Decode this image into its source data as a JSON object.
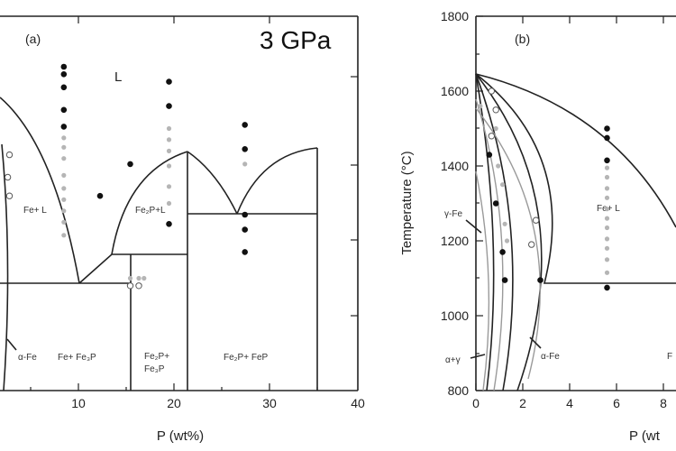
{
  "chart_data": [
    {
      "type": "scatter",
      "panel_label": "(a)",
      "pressure_label": "3 GPa",
      "xlabel": "P (wt%)",
      "ylabel": "",
      "xlim": [
        -1.5,
        40
      ],
      "ylim": [
        800,
        1800
      ],
      "x_ticks": [
        "10",
        "20",
        "30",
        "40"
      ],
      "region_labels": {
        "liquid": "L",
        "fe_l": "Fe+ L",
        "fe2p_l": "Fe₂P+L",
        "fe_fe3p": "Fe+ Fe₃P",
        "fe2p_fe3p_line1": "Fe₂P+",
        "fe2p_fe3p_line2": "Fe₃P",
        "fe2p_fep": "Fe₂P+ FeP",
        "alpha_fe": "α-Fe"
      },
      "series": [
        {
          "marker": "black-half-circle",
          "points": [
            [
              5.9,
              1665
            ],
            [
              5.9,
              1645
            ],
            [
              5.9,
              1610
            ],
            [
              5.9,
              1550
            ],
            [
              5.9,
              1505
            ],
            [
              10.1,
              1320
            ],
            [
              13.6,
              1405
            ],
            [
              18.1,
              1625
            ],
            [
              18.1,
              1560
            ],
            [
              18.1,
              1245
            ],
            [
              26.9,
              1510
            ],
            [
              26.9,
              1445
            ],
            [
              26.9,
              1270
            ],
            [
              26.9,
              1230
            ],
            [
              26.9,
              1170
            ]
          ]
        },
        {
          "marker": "grey-dot",
          "points": [
            [
              5.9,
              1475
            ],
            [
              5.9,
              1450
            ],
            [
              5.9,
              1420
            ],
            [
              5.9,
              1375
            ],
            [
              5.9,
              1340
            ],
            [
              5.9,
              1310
            ],
            [
              5.9,
              1280
            ],
            [
              5.9,
              1250
            ],
            [
              5.9,
              1215
            ],
            [
              18.1,
              1500
            ],
            [
              18.1,
              1470
            ],
            [
              18.1,
              1440
            ],
            [
              18.1,
              1400
            ],
            [
              18.1,
              1345
            ],
            [
              18.1,
              1300
            ],
            [
              26.9,
              1405
            ],
            [
              13.6,
              1100
            ],
            [
              14.6,
              1100
            ],
            [
              15.2,
              1100
            ]
          ]
        },
        {
          "marker": "open-circle",
          "points": [
            [
              -0.4,
              1430
            ],
            [
              -0.4,
              1320
            ],
            [
              -0.6,
              1370
            ],
            [
              13.6,
              1080
            ],
            [
              14.6,
              1080
            ]
          ]
        }
      ]
    },
    {
      "type": "scatter",
      "panel_label": "(b)",
      "xlabel": "P (wt",
      "ylabel": "Temperature (°C)",
      "xlim": [
        0,
        9
      ],
      "ylim": [
        800,
        1800
      ],
      "x_ticks": [
        "0",
        "2",
        "4",
        "6",
        "8"
      ],
      "y_ticks": [
        "800",
        "1000",
        "1200",
        "1400",
        "1600",
        "1800"
      ],
      "region_labels": {
        "fe_l": "Fe+ L",
        "gamma_fe": "γ-Fe",
        "alpha_fe": "α-Fe",
        "alpha_gamma": "α+γ",
        "edge_label": "F"
      },
      "series": [
        {
          "marker": "black-half-circle",
          "points": [
            [
              5.9,
              1500
            ],
            [
              5.9,
              1475
            ],
            [
              5.9,
              1415
            ],
            [
              0.6,
              1430
            ],
            [
              0.9,
              1300
            ],
            [
              1.2,
              1170
            ],
            [
              1.3,
              1095
            ],
            [
              2.9,
              1095
            ],
            [
              5.9,
              1075
            ]
          ]
        },
        {
          "marker": "grey-dot",
          "points": [
            [
              5.9,
              1395
            ],
            [
              5.9,
              1370
            ],
            [
              5.9,
              1340
            ],
            [
              5.9,
              1315
            ],
            [
              5.9,
              1285
            ],
            [
              5.9,
              1260
            ],
            [
              5.9,
              1235
            ],
            [
              5.9,
              1205
            ],
            [
              5.9,
              1180
            ],
            [
              5.9,
              1150
            ],
            [
              5.9,
              1115
            ],
            [
              0.9,
              1500
            ],
            [
              1.0,
              1400
            ],
            [
              1.2,
              1350
            ],
            [
              1.3,
              1245
            ],
            [
              1.4,
              1200
            ],
            [
              0.2,
              1560
            ]
          ]
        },
        {
          "marker": "open-circle",
          "points": [
            [
              0.7,
              1600
            ],
            [
              0.7,
              1480
            ],
            [
              2.7,
              1255
            ],
            [
              2.5,
              1190
            ],
            [
              0.9,
              1550
            ]
          ]
        }
      ]
    }
  ]
}
